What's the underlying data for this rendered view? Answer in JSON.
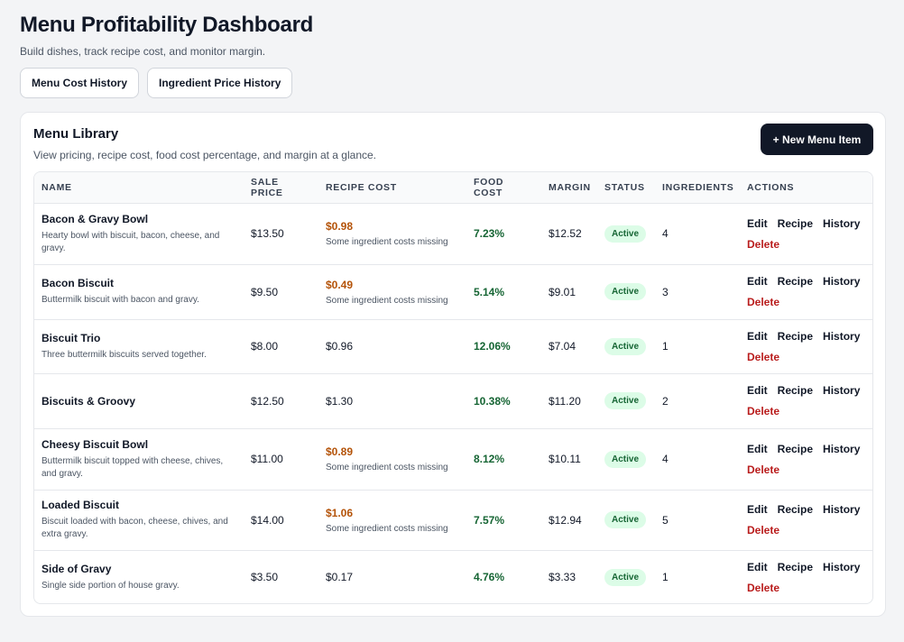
{
  "header": {
    "title": "Menu Profitability Dashboard",
    "subtitle": "Build dishes, track recipe cost, and monitor margin.",
    "buttons": [
      "Menu Cost History",
      "Ingredient Price History"
    ]
  },
  "library": {
    "title": "Menu Library",
    "subtitle": "View pricing, recipe cost, food cost percentage, and margin at a glance.",
    "new_button": "+ New Menu Item",
    "columns": [
      "NAME",
      "SALE PRICE",
      "RECIPE COST",
      "FOOD COST",
      "MARGIN",
      "STATUS",
      "INGREDIENTS",
      "ACTIONS"
    ],
    "action_labels": {
      "edit": "Edit",
      "recipe": "Recipe",
      "history": "History",
      "delete": "Delete"
    },
    "rows": [
      {
        "name": "Bacon & Gravy Bowl",
        "desc": "Hearty bowl with biscuit, bacon, cheese, and gravy.",
        "price": "$13.50",
        "cost": "$0.98",
        "cost_note": "Some ingredient costs missing",
        "food_cost": "7.23%",
        "margin": "$12.52",
        "status": "Active",
        "ingredients": "4"
      },
      {
        "name": "Bacon Biscuit",
        "desc": "Buttermilk biscuit with bacon and gravy.",
        "price": "$9.50",
        "cost": "$0.49",
        "cost_note": "Some ingredient costs missing",
        "food_cost": "5.14%",
        "margin": "$9.01",
        "status": "Active",
        "ingredients": "3"
      },
      {
        "name": "Biscuit Trio",
        "desc": "Three buttermilk biscuits served together.",
        "price": "$8.00",
        "cost": "$0.96",
        "cost_note": "",
        "food_cost": "12.06%",
        "margin": "$7.04",
        "status": "Active",
        "ingredients": "1"
      },
      {
        "name": "Biscuits & Groovy",
        "desc": "",
        "price": "$12.50",
        "cost": "$1.30",
        "cost_note": "",
        "food_cost": "10.38%",
        "margin": "$11.20",
        "status": "Active",
        "ingredients": "2"
      },
      {
        "name": "Cheesy Biscuit Bowl",
        "desc": "Buttermilk biscuit topped with cheese, chives, and gravy.",
        "price": "$11.00",
        "cost": "$0.89",
        "cost_note": "Some ingredient costs missing",
        "food_cost": "8.12%",
        "margin": "$10.11",
        "status": "Active",
        "ingredients": "4"
      },
      {
        "name": "Loaded Biscuit",
        "desc": "Biscuit loaded with bacon, cheese, chives, and extra gravy.",
        "price": "$14.00",
        "cost": "$1.06",
        "cost_note": "Some ingredient costs missing",
        "food_cost": "7.57%",
        "margin": "$12.94",
        "status": "Active",
        "ingredients": "5"
      },
      {
        "name": "Side of Gravy",
        "desc": "Single side portion of house gravy.",
        "price": "$3.50",
        "cost": "$0.17",
        "cost_note": "",
        "food_cost": "4.76%",
        "margin": "$3.33",
        "status": "Active",
        "ingredients": "1"
      }
    ]
  }
}
